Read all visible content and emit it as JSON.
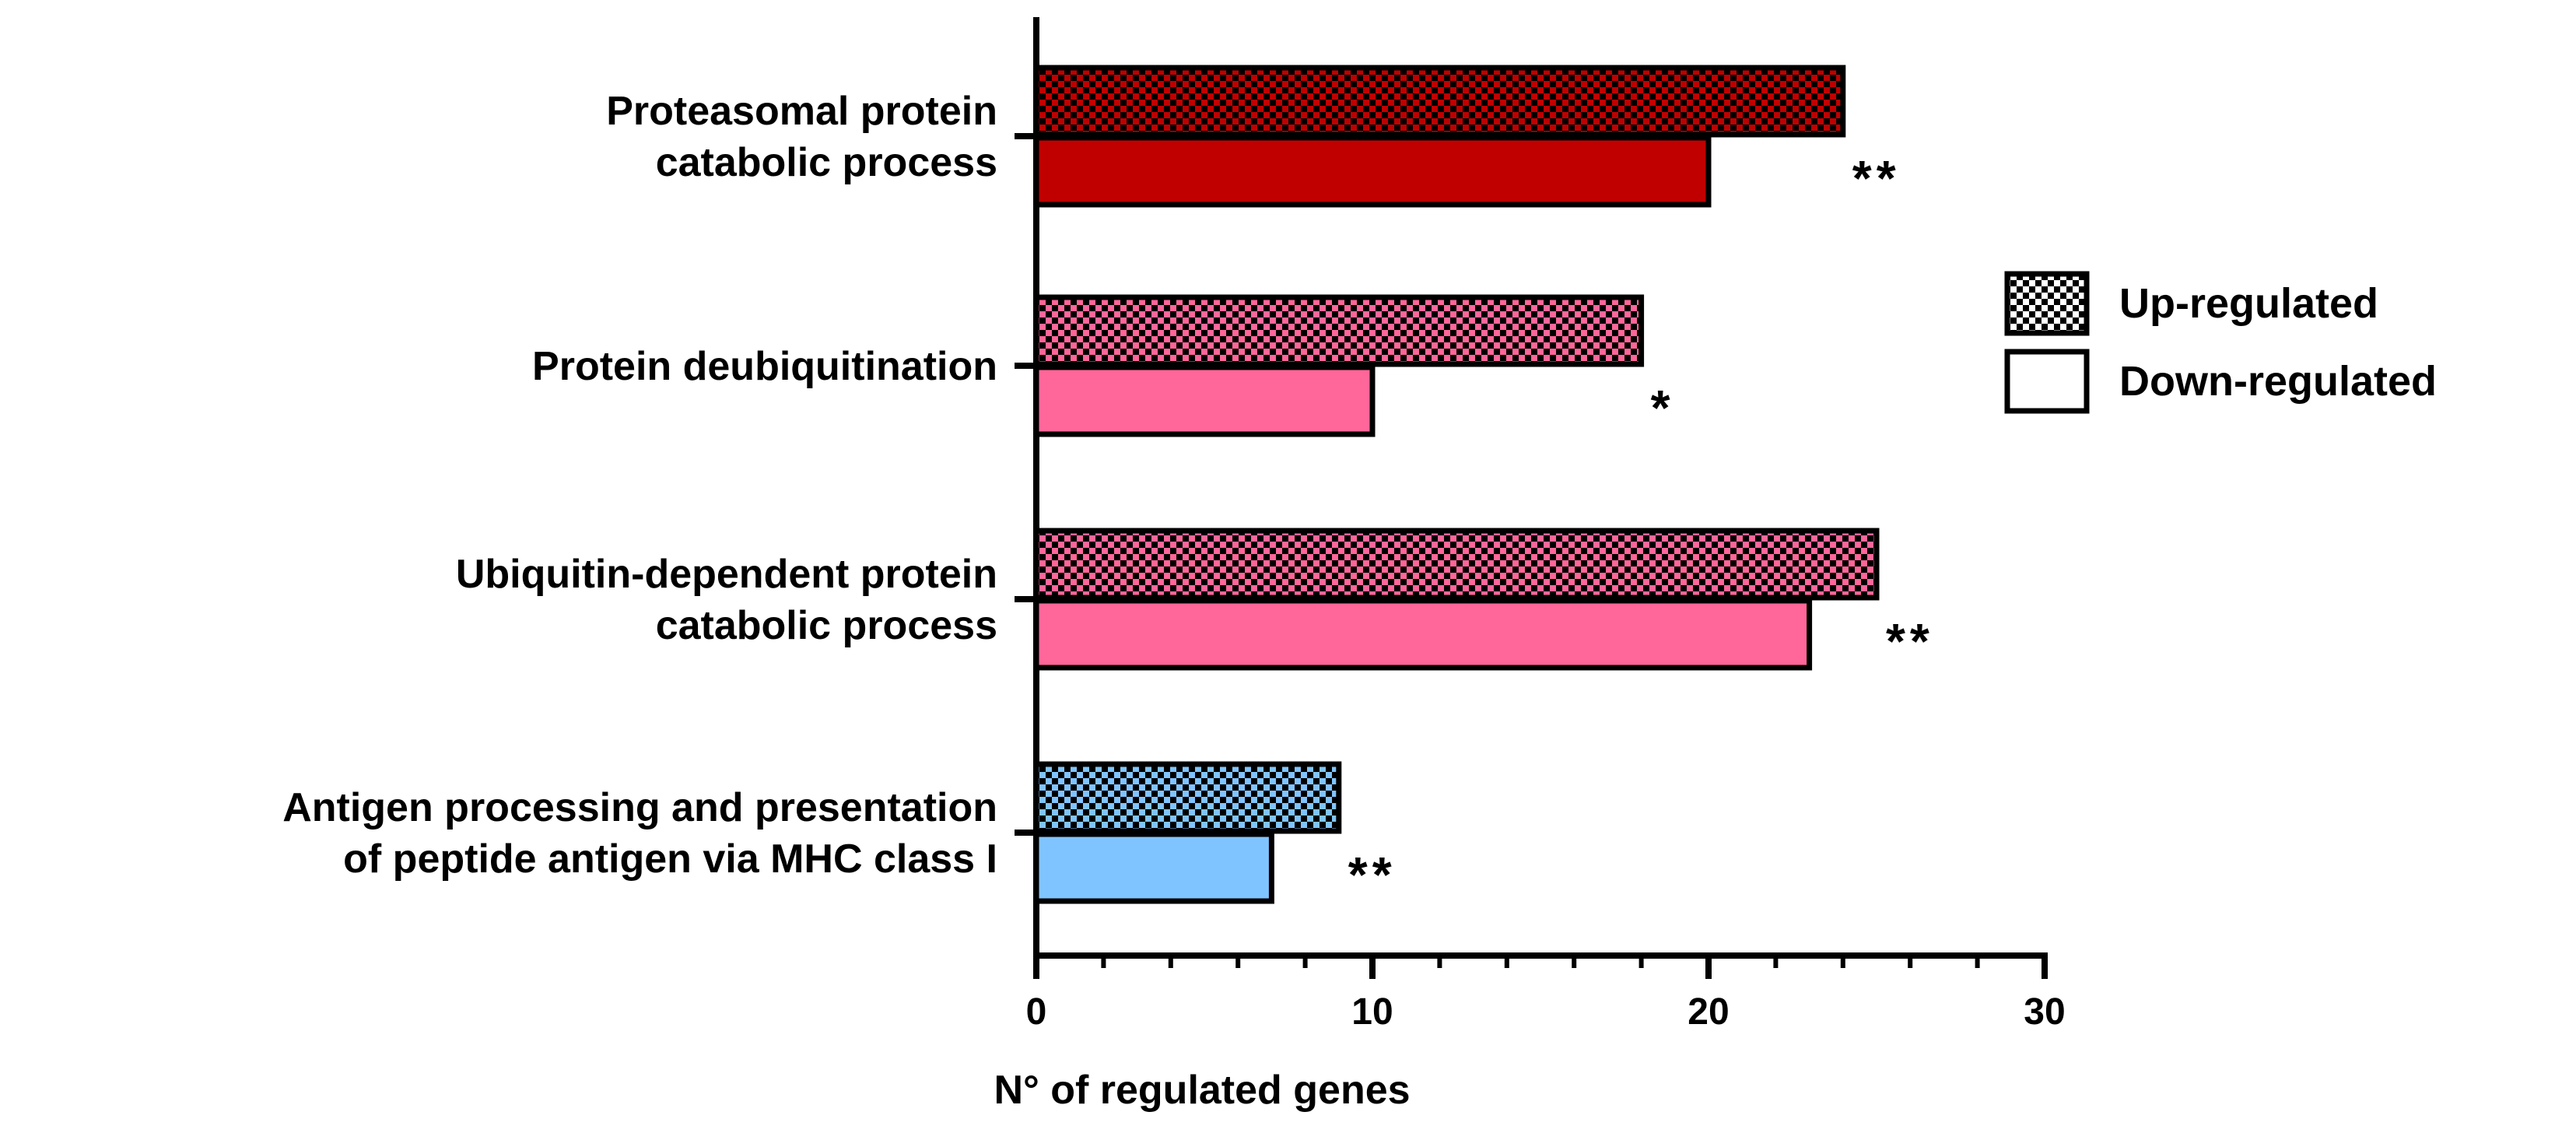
{
  "chart_data": {
    "type": "bar",
    "orientation": "horizontal",
    "title": "",
    "xlabel": "N° of regulated genes",
    "ylabel": "",
    "xlim": [
      0,
      30
    ],
    "xticks": [
      0,
      10,
      20,
      30
    ],
    "categories": [
      {
        "lines": [
          "Proteasomal protein",
          "catabolic process"
        ],
        "color": "#C00000",
        "significance": "**"
      },
      {
        "lines": [
          "Protein deubiquitination"
        ],
        "color": "#FF6699",
        "significance": "*"
      },
      {
        "lines": [
          "Ubiquitin-dependent protein",
          "catabolic process"
        ],
        "color": "#FF6699",
        "significance": "**"
      },
      {
        "lines": [
          "Antigen processing and presentation",
          "of peptide antigen via MHC class I"
        ],
        "color": "#80C4FF",
        "significance": "**"
      }
    ],
    "series": [
      {
        "name": "Up-regulated",
        "pattern": "checkered",
        "values": [
          24,
          18,
          25,
          9
        ]
      },
      {
        "name": "Down-regulated",
        "pattern": "solid",
        "values": [
          20,
          10,
          23,
          7
        ]
      }
    ],
    "legend": {
      "position": "right",
      "entries": [
        "Up-regulated",
        "Down-regulated"
      ]
    }
  }
}
